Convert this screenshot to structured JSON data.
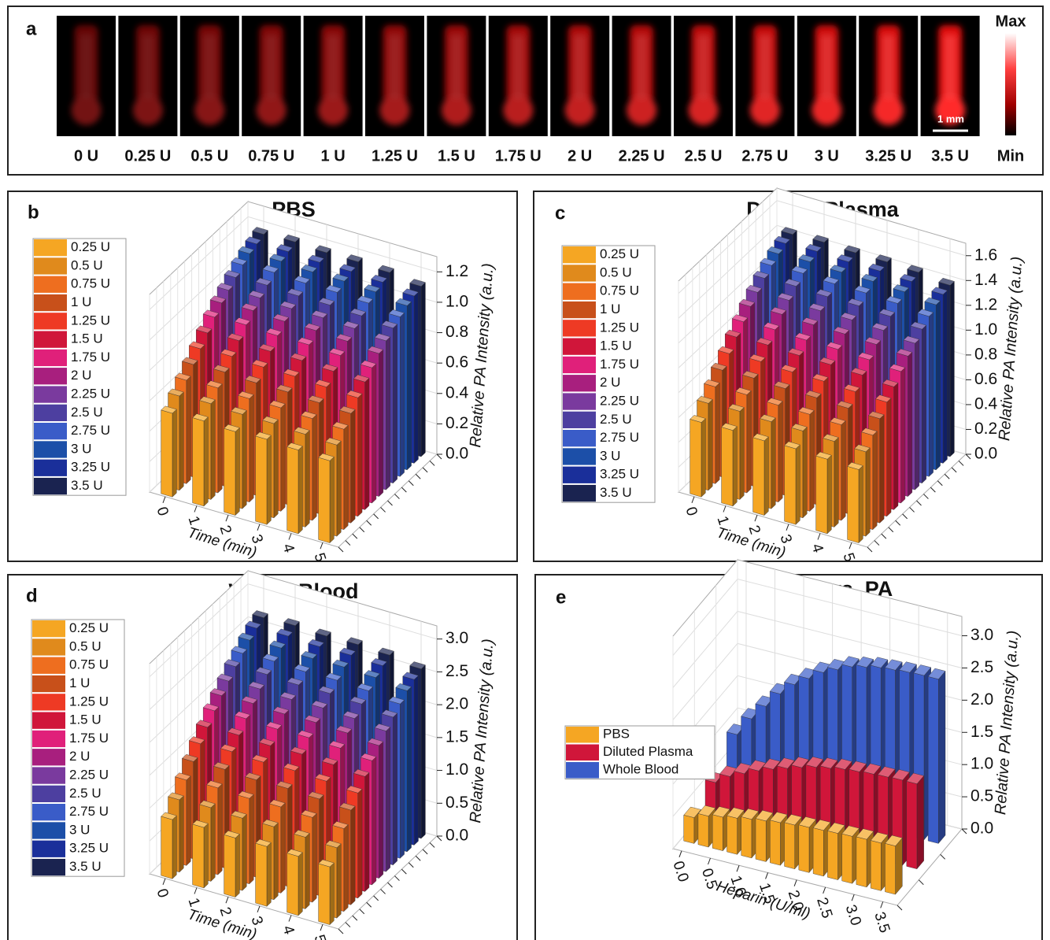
{
  "chart_data": [
    {
      "type": "image",
      "label": "a",
      "categories": [
        "0 U",
        "0.25 U",
        "0.5 U",
        "0.75 U",
        "1 U",
        "1.25 U",
        "1.5 U",
        "1.75 U",
        "2 U",
        "2.25 U",
        "2.5 U",
        "2.75 U",
        "3 U",
        "3.25 U",
        "3.5 U"
      ],
      "colorbar": {
        "max": "Max",
        "min": "Min"
      },
      "scale_bar": "1 mm"
    },
    {
      "type": "bar3d",
      "label": "b",
      "title": "PBS",
      "xlabel": "Time (min)",
      "ylabel": "Relative PA Intensity (a.u.)",
      "x": [
        0,
        1,
        2,
        3,
        4,
        5
      ],
      "xlim": [
        -0.5,
        5.5
      ],
      "xticks": [
        0,
        1,
        2,
        3,
        4,
        5
      ],
      "ylim": [
        0,
        1.3
      ],
      "yticks": [
        {
          "value": 0,
          "label": "0.0"
        },
        0.2,
        0.4,
        0.6,
        0.8,
        {
          "value": 1,
          "label": "1.0"
        },
        1.2
      ],
      "series": [
        {
          "name": "0.25 U",
          "color": "#f5a623",
          "values": [
            0.55,
            0.56,
            0.55,
            0.56,
            0.55,
            0.54
          ]
        },
        {
          "name": "0.5 U",
          "color": "#e08a1c",
          "values": [
            0.62,
            0.63,
            0.62,
            0.62,
            0.61,
            0.6
          ]
        },
        {
          "name": "0.75 U",
          "color": "#ee6e1f",
          "values": [
            0.68,
            0.69,
            0.68,
            0.68,
            0.67,
            0.66
          ]
        },
        {
          "name": "1 U",
          "color": "#c8501a",
          "values": [
            0.74,
            0.75,
            0.74,
            0.74,
            0.73,
            0.72
          ]
        },
        {
          "name": "1.25 U",
          "color": "#ee3a24",
          "values": [
            0.8,
            0.81,
            0.8,
            0.8,
            0.79,
            0.78
          ]
        },
        {
          "name": "1.5 U",
          "color": "#d0163a",
          "values": [
            0.86,
            0.87,
            0.86,
            0.86,
            0.85,
            0.84
          ]
        },
        {
          "name": "1.75 U",
          "color": "#e0207a",
          "values": [
            0.92,
            0.93,
            0.92,
            0.92,
            0.91,
            0.89
          ]
        },
        {
          "name": "2 U",
          "color": "#a81f7e",
          "values": [
            0.97,
            0.98,
            0.97,
            0.97,
            0.96,
            0.94
          ]
        },
        {
          "name": "2.25 U",
          "color": "#7a3a9e",
          "values": [
            1.01,
            1.02,
            1.01,
            1.01,
            1.0,
            0.98
          ]
        },
        {
          "name": "2.5 U",
          "color": "#4d3fa0",
          "values": [
            1.05,
            1.06,
            1.05,
            1.05,
            1.04,
            1.02
          ]
        },
        {
          "name": "2.75 U",
          "color": "#3a5cc8",
          "values": [
            1.09,
            1.1,
            1.09,
            1.09,
            1.08,
            1.05
          ]
        },
        {
          "name": "3 U",
          "color": "#1c4fa8",
          "values": [
            1.12,
            1.13,
            1.12,
            1.12,
            1.11,
            1.08
          ]
        },
        {
          "name": "3.25 U",
          "color": "#1a2f9a",
          "values": [
            1.14,
            1.15,
            1.14,
            1.14,
            1.13,
            1.1
          ]
        },
        {
          "name": "3.5 U",
          "color": "#1a2350",
          "values": [
            1.16,
            1.17,
            1.16,
            1.16,
            1.15,
            1.12
          ]
        }
      ]
    },
    {
      "type": "bar3d",
      "label": "c",
      "title": "Diluted Plasma",
      "xlabel": "Time (min)",
      "ylabel": "Relative PA Intensity (a.u.)",
      "x": [
        0,
        1,
        2,
        3,
        4,
        5
      ],
      "xlim": [
        -0.5,
        5.5
      ],
      "xticks": [
        0,
        1,
        2,
        3,
        4,
        5
      ],
      "ylim": [
        0,
        1.7
      ],
      "yticks": [
        {
          "value": 0,
          "label": "0.0"
        },
        0.2,
        0.4,
        0.6,
        0.8,
        {
          "value": 1,
          "label": "1.0"
        },
        1.2,
        1.4,
        1.6
      ],
      "series": [
        {
          "name": "0.25 U",
          "color": "#f5a623",
          "values": [
            0.6,
            0.61,
            0.6,
            0.61,
            0.6,
            0.59
          ]
        },
        {
          "name": "0.5 U",
          "color": "#e08a1c",
          "values": [
            0.7,
            0.71,
            0.7,
            0.7,
            0.69,
            0.68
          ]
        },
        {
          "name": "0.75 U",
          "color": "#ee6e1f",
          "values": [
            0.78,
            0.79,
            0.78,
            0.78,
            0.77,
            0.76
          ]
        },
        {
          "name": "1 U",
          "color": "#c8501a",
          "values": [
            0.86,
            0.87,
            0.86,
            0.86,
            0.85,
            0.84
          ]
        },
        {
          "name": "1.25 U",
          "color": "#ee3a24",
          "values": [
            0.94,
            0.95,
            0.94,
            0.94,
            0.93,
            0.92
          ]
        },
        {
          "name": "1.5 U",
          "color": "#d0163a",
          "values": [
            1.02,
            1.03,
            1.02,
            1.02,
            1.01,
            0.99
          ]
        },
        {
          "name": "1.75 U",
          "color": "#e0207a",
          "values": [
            1.09,
            1.1,
            1.09,
            1.09,
            1.08,
            1.06
          ]
        },
        {
          "name": "2 U",
          "color": "#a81f7e",
          "values": [
            1.16,
            1.17,
            1.16,
            1.16,
            1.15,
            1.13
          ]
        },
        {
          "name": "2.25 U",
          "color": "#7a3a9e",
          "values": [
            1.22,
            1.23,
            1.22,
            1.22,
            1.21,
            1.18
          ]
        },
        {
          "name": "2.5 U",
          "color": "#4d3fa0",
          "values": [
            1.28,
            1.29,
            1.28,
            1.28,
            1.27,
            1.24
          ]
        },
        {
          "name": "2.75 U",
          "color": "#3a5cc8",
          "values": [
            1.33,
            1.34,
            1.33,
            1.33,
            1.32,
            1.29
          ]
        },
        {
          "name": "3 U",
          "color": "#1c4fa8",
          "values": [
            1.37,
            1.38,
            1.37,
            1.37,
            1.36,
            1.33
          ]
        },
        {
          "name": "3.25 U",
          "color": "#1a2f9a",
          "values": [
            1.4,
            1.41,
            1.4,
            1.4,
            1.39,
            1.36
          ]
        },
        {
          "name": "3.5 U",
          "color": "#1a2350",
          "values": [
            1.42,
            1.43,
            1.42,
            1.42,
            1.41,
            1.38
          ]
        }
      ]
    },
    {
      "type": "bar3d",
      "label": "d",
      "title": "Whole Blood",
      "xlabel": "Time (min)",
      "ylabel": "Relative PA Intensity (a.u.)",
      "x": [
        0,
        1,
        2,
        3,
        4,
        5
      ],
      "xlim": [
        -0.5,
        5.5
      ],
      "xticks": [
        0,
        1,
        2,
        3,
        4,
        5
      ],
      "ylim": [
        0,
        3.2
      ],
      "yticks": [
        {
          "value": 0,
          "label": "0.0"
        },
        0.5,
        {
          "value": 1,
          "label": "1.0"
        },
        1.5,
        {
          "value": 2,
          "label": "2.0"
        },
        2.5,
        {
          "value": 3,
          "label": "3.0"
        }
      ],
      "series": [
        {
          "name": "0.25 U",
          "color": "#f5a623",
          "values": [
            0.9,
            0.92,
            0.9,
            0.91,
            0.9,
            0.88
          ]
        },
        {
          "name": "0.5 U",
          "color": "#e08a1c",
          "values": [
            1.1,
            1.12,
            1.1,
            1.11,
            1.09,
            1.07
          ]
        },
        {
          "name": "0.75 U",
          "color": "#ee6e1f",
          "values": [
            1.3,
            1.32,
            1.3,
            1.31,
            1.29,
            1.26
          ]
        },
        {
          "name": "1 U",
          "color": "#c8501a",
          "values": [
            1.48,
            1.5,
            1.48,
            1.49,
            1.47,
            1.44
          ]
        },
        {
          "name": "1.25 U",
          "color": "#ee3a24",
          "values": [
            1.65,
            1.67,
            1.65,
            1.66,
            1.64,
            1.6
          ]
        },
        {
          "name": "1.5 U",
          "color": "#d0163a",
          "values": [
            1.8,
            1.82,
            1.8,
            1.81,
            1.79,
            1.75
          ]
        },
        {
          "name": "1.75 U",
          "color": "#e0207a",
          "values": [
            1.95,
            1.97,
            1.95,
            1.96,
            1.94,
            1.89
          ]
        },
        {
          "name": "2 U",
          "color": "#a81f7e",
          "values": [
            2.08,
            2.1,
            2.08,
            2.09,
            2.07,
            2.02
          ]
        },
        {
          "name": "2.25 U",
          "color": "#7a3a9e",
          "values": [
            2.2,
            2.22,
            2.2,
            2.21,
            2.19,
            2.14
          ]
        },
        {
          "name": "2.5 U",
          "color": "#4d3fa0",
          "values": [
            2.32,
            2.34,
            2.32,
            2.33,
            2.31,
            2.25
          ]
        },
        {
          "name": "2.75 U",
          "color": "#3a5cc8",
          "values": [
            2.42,
            2.44,
            2.42,
            2.43,
            2.41,
            2.35
          ]
        },
        {
          "name": "3 U",
          "color": "#1c4fa8",
          "values": [
            2.52,
            2.54,
            2.52,
            2.53,
            2.51,
            2.45
          ]
        },
        {
          "name": "3.25 U",
          "color": "#1a2f9a",
          "values": [
            2.6,
            2.62,
            2.6,
            2.61,
            2.59,
            2.52
          ]
        },
        {
          "name": "3.5 U",
          "color": "#1a2350",
          "values": [
            2.66,
            2.68,
            2.66,
            2.67,
            2.65,
            2.58
          ]
        }
      ]
    },
    {
      "type": "bar3d",
      "label": "e",
      "title": "Heparin vs. PA",
      "xlabel": "Heparin (U/ml)",
      "ylabel": "Relative PA Intensity (a.u.)",
      "x": [
        0,
        0.25,
        0.5,
        0.75,
        1,
        1.25,
        1.5,
        1.75,
        2,
        2.25,
        2.5,
        2.75,
        3,
        3.25,
        3.5
      ],
      "xlim": [
        -0.15,
        3.75
      ],
      "xticks": [
        {
          "value": 0,
          "label": "0.0"
        },
        0.5,
        {
          "value": 1,
          "label": "1.0"
        },
        1.5,
        {
          "value": 2,
          "label": "2.0"
        },
        2.5,
        {
          "value": 3,
          "label": "3.0"
        },
        3.5
      ],
      "ylim": [
        0,
        3.3
      ],
      "yticks": [
        {
          "value": 0,
          "label": "0.0"
        },
        0.5,
        {
          "value": 1,
          "label": "1.0"
        },
        1.5,
        {
          "value": 2,
          "label": "2.0"
        },
        2.5,
        {
          "value": 3,
          "label": "3.0"
        }
      ],
      "series": [
        {
          "name": "PBS",
          "color": "#f5a623",
          "values": [
            0.4,
            0.48,
            0.52,
            0.56,
            0.6,
            0.63,
            0.66,
            0.68,
            0.7,
            0.71,
            0.72,
            0.73,
            0.74,
            0.74,
            0.75
          ]
        },
        {
          "name": "Diluted Plasma",
          "color": "#d0163a",
          "values": [
            0.55,
            0.7,
            0.8,
            0.9,
            0.98,
            1.05,
            1.12,
            1.18,
            1.22,
            1.26,
            1.28,
            1.3,
            1.31,
            1.32,
            1.32
          ]
        },
        {
          "name": "Whole Blood",
          "color": "#3a5cc8",
          "values": [
            0.9,
            1.2,
            1.45,
            1.7,
            1.9,
            2.05,
            2.2,
            2.3,
            2.4,
            2.45,
            2.5,
            2.52,
            2.54,
            2.55,
            2.55
          ]
        }
      ]
    }
  ]
}
